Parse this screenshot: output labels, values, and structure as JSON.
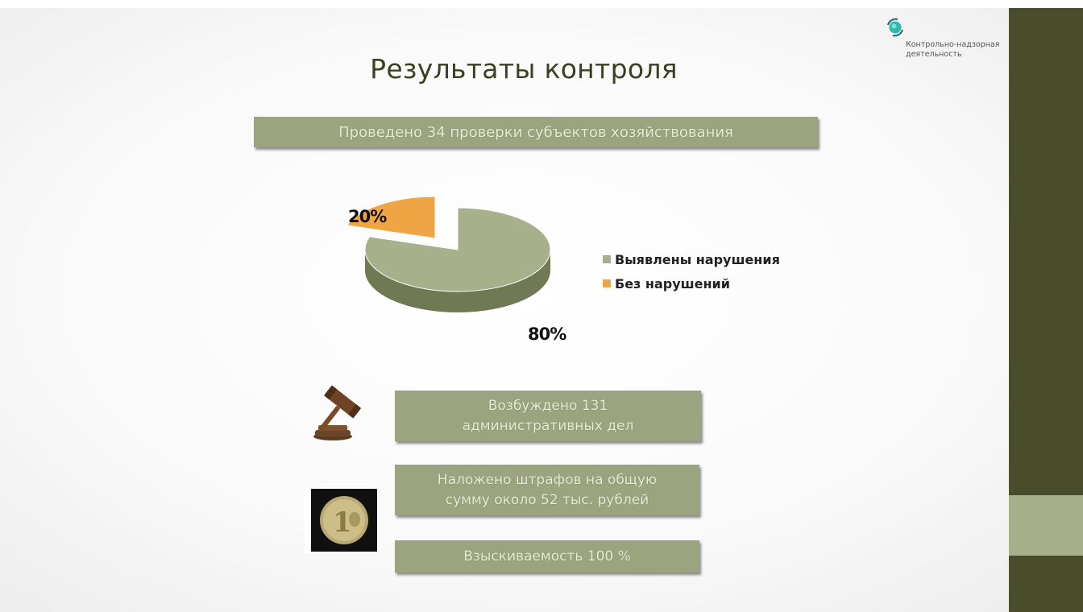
{
  "logo": {
    "text_line1": "Контрольно-надзорная",
    "text_line2": "деятельность"
  },
  "slide": {
    "title": "Результаты контроля",
    "banner_top": "Проведено 34 проверки субъектов хозяйствования",
    "cases_line1": "Возбуждено 131",
    "cases_line2": "административных дел",
    "fines_line1": "Наложено штрафов на общую",
    "fines_line2": "сумму около 52 тыс. рублей",
    "collection": "Взыскиваемость 100 %"
  },
  "icons": {
    "gavel": "gavel-icon",
    "coin": "coin-icon",
    "logo": "logo-icon"
  },
  "colors": {
    "violations": "#a6b18c",
    "no_violations": "#f0a545",
    "banner": "#9aa580",
    "sidebar": "#4a4d2c",
    "sidebar_accent": "#a6b18c"
  },
  "chart_data": {
    "type": "pie",
    "labels": [
      "Выявлены нарушения",
      "Без нарушений"
    ],
    "values": [
      80,
      20
    ],
    "data_labels": [
      "80%",
      "20%"
    ],
    "legend_position": "right",
    "style": "3d"
  }
}
